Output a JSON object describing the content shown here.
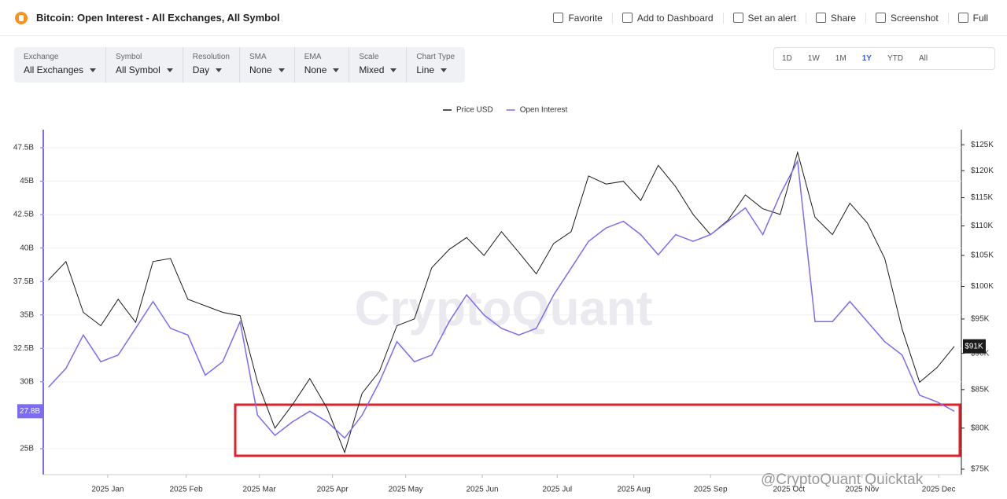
{
  "header": {
    "title": "Bitcoin: Open Interest - All Exchanges, All Symbol",
    "actions": [
      "Favorite",
      "Add to Dashboard",
      "Set an alert",
      "Share",
      "Screenshot",
      "Full"
    ]
  },
  "filters": [
    {
      "label": "Exchange",
      "value": "All Exchanges"
    },
    {
      "label": "Symbol",
      "value": "All Symbol"
    },
    {
      "label": "Resolution",
      "value": "Day"
    },
    {
      "label": "SMA",
      "value": "None"
    },
    {
      "label": "EMA",
      "value": "None"
    },
    {
      "label": "Scale",
      "value": "Mixed"
    },
    {
      "label": "Chart Type",
      "value": "Line"
    }
  ],
  "ranges": [
    "1D",
    "1W",
    "1M",
    "1Y",
    "YTD",
    "All"
  ],
  "active_range": "1Y",
  "watermark": "CryptoQuant",
  "credit": "@CryptoQuant Quicktak",
  "chart_data": {
    "type": "line",
    "grid": true,
    "legend": "top",
    "xlim": [
      -0.3,
      52.4
    ],
    "xticks": [
      {
        "value": 3.4,
        "label": "2025 Jan"
      },
      {
        "value": 7.9,
        "label": "2025 Feb"
      },
      {
        "value": 12.1,
        "label": "2025 Mar"
      },
      {
        "value": 16.3,
        "label": "2025 Apr"
      },
      {
        "value": 20.5,
        "label": "2025 May"
      },
      {
        "value": 24.9,
        "label": "2025 Jun"
      },
      {
        "value": 29.2,
        "label": "2025 Jul"
      },
      {
        "value": 33.6,
        "label": "2025 Aug"
      },
      {
        "value": 38.0,
        "label": "2025 Sep"
      },
      {
        "value": 42.5,
        "label": "2025 Oct"
      },
      {
        "value": 46.7,
        "label": "2025 Nov"
      },
      {
        "value": 51.1,
        "label": "2025 Dec"
      }
    ],
    "ylim": [
      23.06,
      48.85
    ],
    "yticks": [
      {
        "value": 25,
        "label": "25B"
      },
      {
        "value": 30,
        "label": "30B"
      },
      {
        "value": 32.5,
        "label": "32.5B"
      },
      {
        "value": 35,
        "label": "35B"
      },
      {
        "value": 37.5,
        "label": "37.5B"
      },
      {
        "value": 40,
        "label": "40B"
      },
      {
        "value": 42.5,
        "label": "42.5B"
      },
      {
        "value": 45,
        "label": "45B"
      },
      {
        "value": 47.5,
        "label": "47.5B"
      }
    ],
    "y2lim": [
      74350,
      128000
    ],
    "y2log": true,
    "y2ticks": [
      {
        "value": 75000,
        "label": "$75K"
      },
      {
        "value": 80000,
        "label": "$80K"
      },
      {
        "value": 85000,
        "label": "$85K"
      },
      {
        "value": 90000,
        "label": "$90K"
      },
      {
        "value": 95000,
        "label": "$95K"
      },
      {
        "value": 100000,
        "label": "$100K"
      },
      {
        "value": 105000,
        "label": "$105K"
      },
      {
        "value": 110000,
        "label": "$110K"
      },
      {
        "value": 115000,
        "label": "$115K"
      },
      {
        "value": 120000,
        "label": "$120K"
      },
      {
        "value": 125000,
        "label": "$125K"
      }
    ],
    "series": [
      {
        "name": "Price USD",
        "color": "#1a1a1a",
        "axis": "y2",
        "last_label": "$91K",
        "values": [
          101000,
          104000,
          96000,
          94000,
          98000,
          94500,
          104000,
          104500,
          98000,
          97000,
          96000,
          95500,
          86000,
          80000,
          83000,
          86500,
          82500,
          77000,
          84500,
          87500,
          94000,
          95000,
          103000,
          106000,
          108000,
          105000,
          109000,
          105500,
          102000,
          107000,
          109000,
          119000,
          117500,
          118000,
          114500,
          121000,
          117000,
          112000,
          108500,
          111000,
          115500,
          113000,
          112000,
          123500,
          111500,
          108500,
          114000,
          110500,
          104500,
          93500,
          86000,
          88000,
          91000
        ]
      },
      {
        "name": "Open Interest",
        "color": "#7b6cf0",
        "axis": "y",
        "last_label": "27.8B",
        "values": [
          29.6,
          31.0,
          33.5,
          31.5,
          32.0,
          34.0,
          36.0,
          34.0,
          33.5,
          30.5,
          31.5,
          34.5,
          27.5,
          26.0,
          27.0,
          27.8,
          27.0,
          25.8,
          27.5,
          30.0,
          33.0,
          31.5,
          32.0,
          34.5,
          36.5,
          35.0,
          34.0,
          33.5,
          34.0,
          36.5,
          38.5,
          40.5,
          41.5,
          42.0,
          41.0,
          39.5,
          41.0,
          40.5,
          41.0,
          42.0,
          43.0,
          41.0,
          44.0,
          46.5,
          34.5,
          34.5,
          36.0,
          34.5,
          33.0,
          32.0,
          29.0,
          28.5,
          27.8
        ]
      }
    ]
  }
}
